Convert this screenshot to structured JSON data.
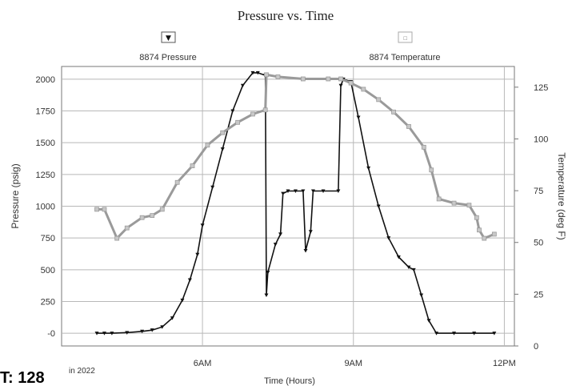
{
  "chart_data": {
    "type": "line",
    "title": "Pressure vs. Time",
    "xlabel": "Time (Hours)",
    "ylabel": "Pressure (psig)",
    "y2label": "Temperature (deg F)",
    "x_ticks": [
      "6AM",
      "9AM",
      "12PM"
    ],
    "x_tick_hours": [
      6,
      9,
      12
    ],
    "xlim": [
      3.2,
      12.2
    ],
    "ylim": [
      -100,
      2100
    ],
    "y_ticks": [
      2000,
      1750,
      1500,
      1250,
      1000,
      750,
      500,
      250,
      0
    ],
    "y_tick_labels": [
      "2000",
      "1750",
      "1500",
      "1250",
      "1000",
      "750",
      "500",
      "250",
      "-0"
    ],
    "y2lim": [
      0,
      135
    ],
    "y2_ticks": [
      125,
      100,
      75,
      50,
      25,
      0
    ],
    "grid": true,
    "legend_placement": "top",
    "series": [
      {
        "name": "8874 Pressure",
        "axis": "left",
        "color": "#111111",
        "marker": "black-triangle",
        "x": [
          3.9,
          4.05,
          4.2,
          4.5,
          4.8,
          5.0,
          5.2,
          5.4,
          5.6,
          5.75,
          5.9,
          6.0,
          6.2,
          6.4,
          6.6,
          6.8,
          7.0,
          7.1,
          7.25,
          7.27,
          7.3,
          7.45,
          7.55,
          7.6,
          7.7,
          7.85,
          8.0,
          8.05,
          8.15,
          8.2,
          8.4,
          8.7,
          8.75,
          8.8,
          8.95,
          9.1,
          9.3,
          9.5,
          9.7,
          9.9,
          10.1,
          10.2,
          10.35,
          10.5,
          10.65,
          11.0,
          11.4,
          11.8
        ],
        "values": [
          0,
          0,
          0,
          5,
          15,
          25,
          50,
          120,
          260,
          420,
          620,
          850,
          1150,
          1450,
          1750,
          1950,
          2050,
          2050,
          2030,
          300,
          480,
          700,
          780,
          1100,
          1120,
          1120,
          1120,
          650,
          800,
          1120,
          1120,
          1120,
          1950,
          2000,
          1980,
          1700,
          1300,
          1000,
          750,
          600,
          520,
          500,
          300,
          100,
          0,
          0,
          0,
          0
        ]
      },
      {
        "name": "8874 Temperature",
        "axis": "right",
        "color": "#9a9a9a",
        "marker": "gray-square",
        "x": [
          3.9,
          4.05,
          4.3,
          4.5,
          4.8,
          5.0,
          5.2,
          5.5,
          5.8,
          6.1,
          6.4,
          6.7,
          7.0,
          7.25,
          7.27,
          7.5,
          8.0,
          8.5,
          8.75,
          8.95,
          9.2,
          9.5,
          9.8,
          10.1,
          10.4,
          10.55,
          10.7,
          11.0,
          11.3,
          11.45,
          11.5,
          11.6,
          11.8
        ],
        "values": [
          66,
          66,
          52,
          57,
          62,
          63,
          66,
          79,
          87,
          97,
          103,
          108,
          112,
          114,
          131,
          130,
          129,
          129,
          129,
          127,
          124,
          119,
          113,
          106,
          96,
          85,
          71,
          69,
          68,
          62,
          56,
          52,
          54
        ]
      }
    ],
    "corner_text": [
      "T: 128",
      "in 2022"
    ]
  }
}
